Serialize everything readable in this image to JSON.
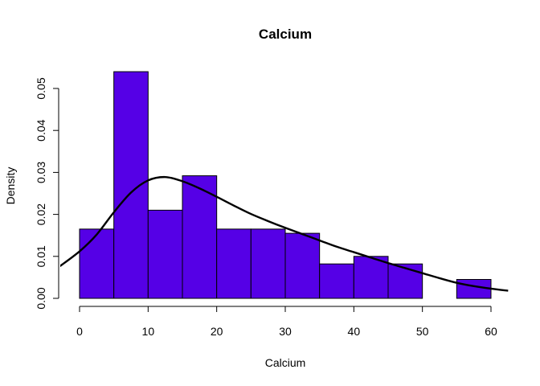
{
  "chart_data": {
    "type": "bar",
    "title": "Calcium",
    "xlabel": "Calcium",
    "ylabel": "Density",
    "bar_color": "#5500E6",
    "bar_edge_color": "#000000",
    "curve_color": "#000000",
    "xlim": [
      0,
      62
    ],
    "ylim": [
      0,
      0.054
    ],
    "x_ticks": [
      "0",
      "10",
      "20",
      "30",
      "40",
      "50",
      "60"
    ],
    "x_tick_values": [
      0,
      10,
      20,
      30,
      40,
      50,
      60
    ],
    "y_ticks": [
      "0.00",
      "0.01",
      "0.02",
      "0.03",
      "0.04",
      "0.05"
    ],
    "y_tick_values": [
      0,
      0.01,
      0.02,
      0.03,
      0.04,
      0.05
    ],
    "bins": [
      {
        "x0": 0,
        "x1": 5,
        "density": 0.0165
      },
      {
        "x0": 5,
        "x1": 10,
        "density": 0.054
      },
      {
        "x0": 10,
        "x1": 15,
        "density": 0.021
      },
      {
        "x0": 15,
        "x1": 20,
        "density": 0.0292
      },
      {
        "x0": 20,
        "x1": 25,
        "density": 0.0165
      },
      {
        "x0": 25,
        "x1": 30,
        "density": 0.0165
      },
      {
        "x0": 30,
        "x1": 35,
        "density": 0.0155
      },
      {
        "x0": 35,
        "x1": 40,
        "density": 0.0082
      },
      {
        "x0": 40,
        "x1": 45,
        "density": 0.01
      },
      {
        "x0": 45,
        "x1": 50,
        "density": 0.0082
      },
      {
        "x0": 50,
        "x1": 55,
        "density": 0
      },
      {
        "x0": 55,
        "x1": 60,
        "density": 0.0045
      }
    ],
    "density_curve": {
      "x": [
        -3,
        0,
        2.5,
        5,
        7.5,
        10,
        12.5,
        15,
        17.5,
        20,
        22.5,
        25,
        27.5,
        30,
        32.5,
        35,
        37.5,
        40,
        42.5,
        45,
        47.5,
        50,
        52.5,
        55,
        57.5,
        60,
        62.5
      ],
      "y": [
        0.0075,
        0.0112,
        0.0152,
        0.0205,
        0.0252,
        0.0281,
        0.0289,
        0.0279,
        0.0262,
        0.0242,
        0.0221,
        0.0201,
        0.0184,
        0.0168,
        0.0153,
        0.0138,
        0.0123,
        0.011,
        0.0097,
        0.0084,
        0.0072,
        0.006,
        0.0048,
        0.0037,
        0.0029,
        0.0023,
        0.0018
      ]
    }
  }
}
